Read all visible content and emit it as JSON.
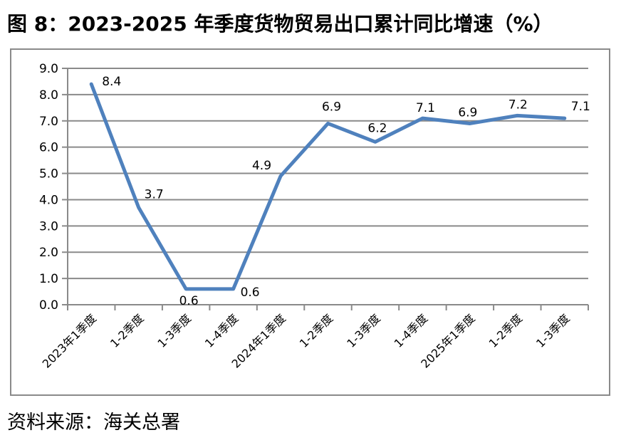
{
  "figure": {
    "title": "图 8：2023-2025 年季度货物贸易出口累计同比增速（%）",
    "source": "资料来源：海关总署"
  },
  "chart_data": {
    "type": "line",
    "title": "图 8：2023-2025 年季度货物贸易出口累计同比增速（%）",
    "categories": [
      "2023年1季度",
      "1-2季度",
      "1-3季度",
      "1-4季度",
      "2024年1季度",
      "1-2季度",
      "1-3季度",
      "1-4季度",
      "2025年1季度",
      "1-2季度",
      "1-3季度"
    ],
    "values": [
      8.4,
      3.7,
      0.6,
      0.6,
      4.9,
      6.9,
      6.2,
      7.1,
      6.9,
      7.2,
      7.1
    ],
    "xlabel": "",
    "ylabel": "",
    "ylim": [
      0,
      9
    ],
    "ytick_step": 1,
    "ytick_decimals": 1,
    "data_labels": true,
    "grid": true,
    "legend": false,
    "x_label_rotation": -45,
    "colors": {
      "line": "#4F81BD",
      "grid": "#8a8a8a",
      "axis": "#8a8a8a",
      "text": "#000000"
    }
  }
}
